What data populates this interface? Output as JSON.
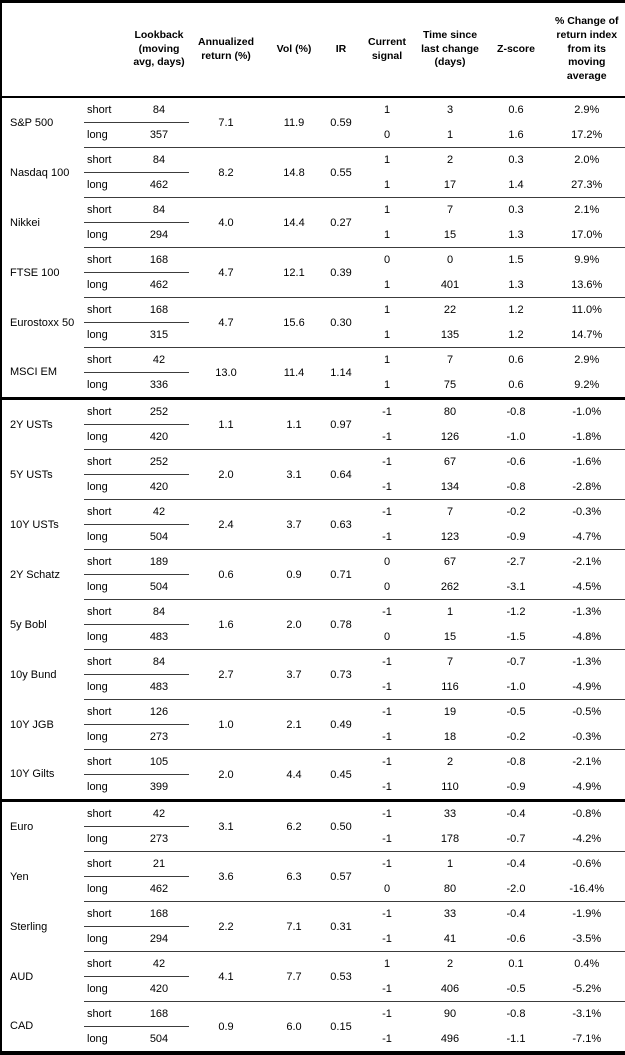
{
  "colors": {
    "text": "#000000",
    "background": "#ffffff",
    "outer_border": "#000000",
    "thin_rule": "#3c3c3c"
  },
  "table": {
    "headers": {
      "asset": "",
      "leg": "",
      "lookback": "Lookback\n(moving\navg, days)",
      "annualized_return": "Annualized\nreturn (%)",
      "vol": "Vol (%)",
      "ir": "IR",
      "current_signal": "Current\nsignal",
      "time_since_change": "Time since\nlast change\n(days)",
      "zscore": "Z-score",
      "pct_change": "% Change of\nreturn index\nfrom its\nmoving\naverage"
    },
    "sections": [
      {
        "id": "equities",
        "assets": [
          {
            "name": "S&P 500",
            "annualized_return": "7.1",
            "vol": "11.9",
            "ir": "0.59",
            "rows": [
              {
                "leg": "short",
                "lookback": "84",
                "signal": "1",
                "time_since_change": "3",
                "zscore": "0.6",
                "pct_change": "2.9%"
              },
              {
                "leg": "long",
                "lookback": "357",
                "signal": "0",
                "time_since_change": "1",
                "zscore": "1.6",
                "pct_change": "17.2%"
              }
            ]
          },
          {
            "name": "Nasdaq 100",
            "annualized_return": "8.2",
            "vol": "14.8",
            "ir": "0.55",
            "rows": [
              {
                "leg": "short",
                "lookback": "84",
                "signal": "1",
                "time_since_change": "2",
                "zscore": "0.3",
                "pct_change": "2.0%"
              },
              {
                "leg": "long",
                "lookback": "462",
                "signal": "1",
                "time_since_change": "17",
                "zscore": "1.4",
                "pct_change": "27.3%"
              }
            ]
          },
          {
            "name": "Nikkei",
            "annualized_return": "4.0",
            "vol": "14.4",
            "ir": "0.27",
            "rows": [
              {
                "leg": "short",
                "lookback": "84",
                "signal": "1",
                "time_since_change": "7",
                "zscore": "0.3",
                "pct_change": "2.1%"
              },
              {
                "leg": "long",
                "lookback": "294",
                "signal": "1",
                "time_since_change": "15",
                "zscore": "1.3",
                "pct_change": "17.0%"
              }
            ]
          },
          {
            "name": "FTSE 100",
            "annualized_return": "4.7",
            "vol": "12.1",
            "ir": "0.39",
            "rows": [
              {
                "leg": "short",
                "lookback": "168",
                "signal": "0",
                "time_since_change": "0",
                "zscore": "1.5",
                "pct_change": "9.9%"
              },
              {
                "leg": "long",
                "lookback": "462",
                "signal": "1",
                "time_since_change": "401",
                "zscore": "1.3",
                "pct_change": "13.6%"
              }
            ]
          },
          {
            "name": "Eurostoxx 50",
            "annualized_return": "4.7",
            "vol": "15.6",
            "ir": "0.30",
            "rows": [
              {
                "leg": "short",
                "lookback": "168",
                "signal": "1",
                "time_since_change": "22",
                "zscore": "1.2",
                "pct_change": "11.0%"
              },
              {
                "leg": "long",
                "lookback": "315",
                "signal": "1",
                "time_since_change": "135",
                "zscore": "1.2",
                "pct_change": "14.7%"
              }
            ]
          },
          {
            "name": "MSCI EM",
            "annualized_return": "13.0",
            "vol": "11.4",
            "ir": "1.14",
            "rows": [
              {
                "leg": "short",
                "lookback": "42",
                "signal": "1",
                "time_since_change": "7",
                "zscore": "0.6",
                "pct_change": "2.9%"
              },
              {
                "leg": "long",
                "lookback": "336",
                "signal": "1",
                "time_since_change": "75",
                "zscore": "0.6",
                "pct_change": "9.2%"
              }
            ]
          }
        ]
      },
      {
        "id": "bonds",
        "assets": [
          {
            "name": "2Y USTs",
            "annualized_return": "1.1",
            "vol": "1.1",
            "ir": "0.97",
            "rows": [
              {
                "leg": "short",
                "lookback": "252",
                "signal": "-1",
                "time_since_change": "80",
                "zscore": "-0.8",
                "pct_change": "-1.0%"
              },
              {
                "leg": "long",
                "lookback": "420",
                "signal": "-1",
                "time_since_change": "126",
                "zscore": "-1.0",
                "pct_change": "-1.8%"
              }
            ]
          },
          {
            "name": "5Y USTs",
            "annualized_return": "2.0",
            "vol": "3.1",
            "ir": "0.64",
            "rows": [
              {
                "leg": "short",
                "lookback": "252",
                "signal": "-1",
                "time_since_change": "67",
                "zscore": "-0.6",
                "pct_change": "-1.6%"
              },
              {
                "leg": "long",
                "lookback": "420",
                "signal": "-1",
                "time_since_change": "134",
                "zscore": "-0.8",
                "pct_change": "-2.8%"
              }
            ]
          },
          {
            "name": "10Y USTs",
            "annualized_return": "2.4",
            "vol": "3.7",
            "ir": "0.63",
            "rows": [
              {
                "leg": "short",
                "lookback": "42",
                "signal": "-1",
                "time_since_change": "7",
                "zscore": "-0.2",
                "pct_change": "-0.3%"
              },
              {
                "leg": "long",
                "lookback": "504",
                "signal": "-1",
                "time_since_change": "123",
                "zscore": "-0.9",
                "pct_change": "-4.7%"
              }
            ]
          },
          {
            "name": "2Y Schatz",
            "annualized_return": "0.6",
            "vol": "0.9",
            "ir": "0.71",
            "rows": [
              {
                "leg": "short",
                "lookback": "189",
                "signal": "0",
                "time_since_change": "67",
                "zscore": "-2.7",
                "pct_change": "-2.1%"
              },
              {
                "leg": "long",
                "lookback": "504",
                "signal": "0",
                "time_since_change": "262",
                "zscore": "-3.1",
                "pct_change": "-4.5%"
              }
            ]
          },
          {
            "name": "5y Bobl",
            "annualized_return": "1.6",
            "vol": "2.0",
            "ir": "0.78",
            "rows": [
              {
                "leg": "short",
                "lookback": "84",
                "signal": "-1",
                "time_since_change": "1",
                "zscore": "-1.2",
                "pct_change": "-1.3%"
              },
              {
                "leg": "long",
                "lookback": "483",
                "signal": "0",
                "time_since_change": "15",
                "zscore": "-1.5",
                "pct_change": "-4.8%"
              }
            ]
          },
          {
            "name": "10y Bund",
            "annualized_return": "2.7",
            "vol": "3.7",
            "ir": "0.73",
            "rows": [
              {
                "leg": "short",
                "lookback": "84",
                "signal": "-1",
                "time_since_change": "7",
                "zscore": "-0.7",
                "pct_change": "-1.3%"
              },
              {
                "leg": "long",
                "lookback": "483",
                "signal": "-1",
                "time_since_change": "116",
                "zscore": "-1.0",
                "pct_change": "-4.9%"
              }
            ]
          },
          {
            "name": "10Y JGB",
            "annualized_return": "1.0",
            "vol": "2.1",
            "ir": "0.49",
            "rows": [
              {
                "leg": "short",
                "lookback": "126",
                "signal": "-1",
                "time_since_change": "19",
                "zscore": "-0.5",
                "pct_change": "-0.5%"
              },
              {
                "leg": "long",
                "lookback": "273",
                "signal": "-1",
                "time_since_change": "18",
                "zscore": "-0.2",
                "pct_change": "-0.3%"
              }
            ]
          },
          {
            "name": "10Y Gilts",
            "annualized_return": "2.0",
            "vol": "4.4",
            "ir": "0.45",
            "rows": [
              {
                "leg": "short",
                "lookback": "105",
                "signal": "-1",
                "time_since_change": "2",
                "zscore": "-0.8",
                "pct_change": "-2.1%"
              },
              {
                "leg": "long",
                "lookback": "399",
                "signal": "-1",
                "time_since_change": "110",
                "zscore": "-0.9",
                "pct_change": "-4.9%"
              }
            ]
          }
        ]
      },
      {
        "id": "fx",
        "assets": [
          {
            "name": "Euro",
            "annualized_return": "3.1",
            "vol": "6.2",
            "ir": "0.50",
            "rows": [
              {
                "leg": "short",
                "lookback": "42",
                "signal": "-1",
                "time_since_change": "33",
                "zscore": "-0.4",
                "pct_change": "-0.8%"
              },
              {
                "leg": "long",
                "lookback": "273",
                "signal": "-1",
                "time_since_change": "178",
                "zscore": "-0.7",
                "pct_change": "-4.2%"
              }
            ]
          },
          {
            "name": "Yen",
            "annualized_return": "3.6",
            "vol": "6.3",
            "ir": "0.57",
            "rows": [
              {
                "leg": "short",
                "lookback": "21",
                "signal": "-1",
                "time_since_change": "1",
                "zscore": "-0.4",
                "pct_change": "-0.6%"
              },
              {
                "leg": "long",
                "lookback": "462",
                "signal": "0",
                "time_since_change": "80",
                "zscore": "-2.0",
                "pct_change": "-16.4%"
              }
            ]
          },
          {
            "name": "Sterling",
            "annualized_return": "2.2",
            "vol": "7.1",
            "ir": "0.31",
            "rows": [
              {
                "leg": "short",
                "lookback": "168",
                "signal": "-1",
                "time_since_change": "33",
                "zscore": "-0.4",
                "pct_change": "-1.9%"
              },
              {
                "leg": "long",
                "lookback": "294",
                "signal": "-1",
                "time_since_change": "41",
                "zscore": "-0.6",
                "pct_change": "-3.5%"
              }
            ]
          },
          {
            "name": "AUD",
            "annualized_return": "4.1",
            "vol": "7.7",
            "ir": "0.53",
            "rows": [
              {
                "leg": "short",
                "lookback": "42",
                "signal": "1",
                "time_since_change": "2",
                "zscore": "0.1",
                "pct_change": "0.4%"
              },
              {
                "leg": "long",
                "lookback": "420",
                "signal": "-1",
                "time_since_change": "406",
                "zscore": "-0.5",
                "pct_change": "-5.2%"
              }
            ]
          },
          {
            "name": "CAD",
            "annualized_return": "0.9",
            "vol": "6.0",
            "ir": "0.15",
            "rows": [
              {
                "leg": "short",
                "lookback": "168",
                "signal": "-1",
                "time_since_change": "90",
                "zscore": "-0.8",
                "pct_change": "-3.1%"
              },
              {
                "leg": "long",
                "lookback": "504",
                "signal": "-1",
                "time_since_change": "496",
                "zscore": "-1.1",
                "pct_change": "-7.1%"
              }
            ]
          }
        ]
      }
    ]
  }
}
